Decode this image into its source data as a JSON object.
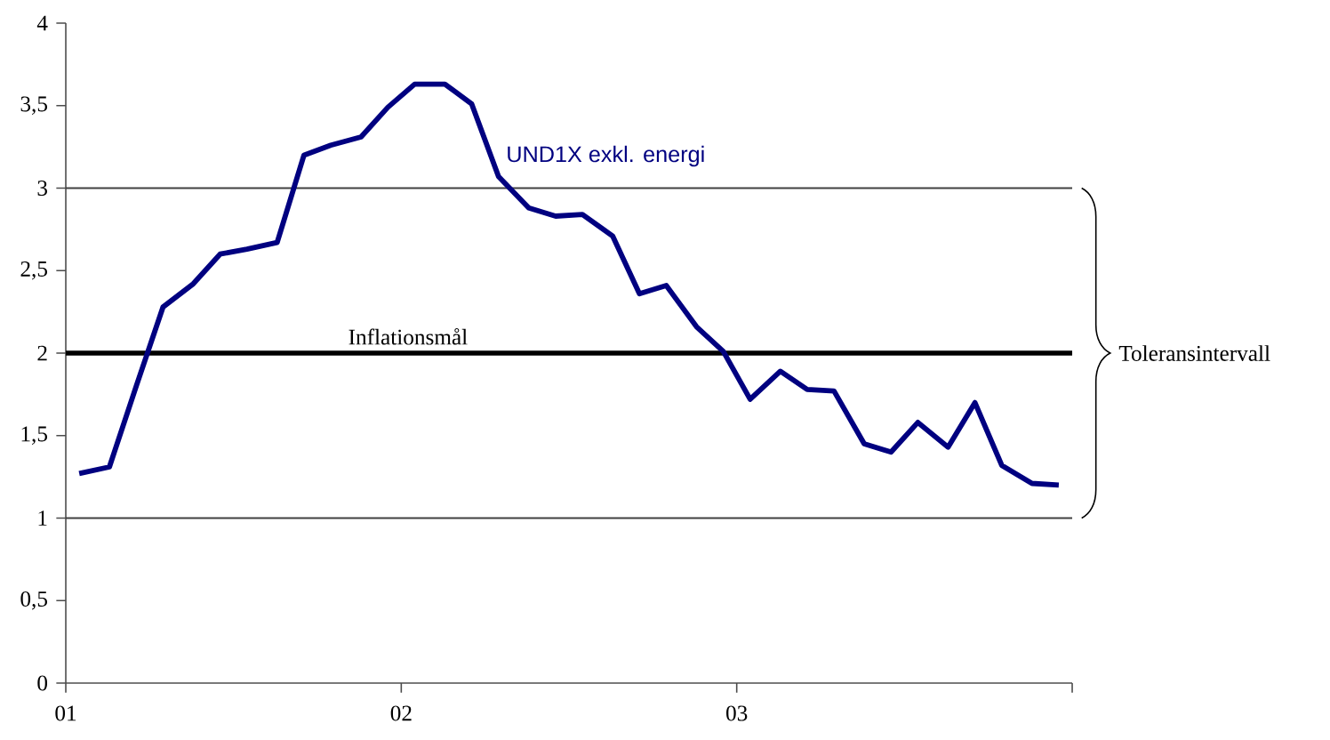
{
  "chart_data": {
    "type": "line",
    "marker": "none",
    "line_style": "solid",
    "x": [
      2001.04,
      2001.13,
      2001.21,
      2001.29,
      2001.38,
      2001.46,
      2001.54,
      2001.63,
      2001.71,
      2001.79,
      2001.88,
      2001.96,
      2002.04,
      2002.13,
      2002.21,
      2002.29,
      2002.38,
      2002.46,
      2002.54,
      2002.63,
      2002.71,
      2002.79,
      2002.88,
      2002.96,
      2003.04,
      2003.13,
      2003.21,
      2003.29,
      2003.38,
      2003.46,
      2003.54,
      2003.63,
      2003.71,
      2003.79,
      2003.88,
      2003.96
    ],
    "series": [
      {
        "name": "UND1X exkl. energi",
        "color": "#000080",
        "values": [
          1.27,
          1.31,
          1.8,
          2.28,
          2.42,
          2.6,
          2.63,
          2.67,
          3.2,
          3.26,
          3.31,
          3.49,
          3.63,
          3.63,
          3.51,
          3.07,
          2.88,
          2.83,
          2.84,
          2.71,
          2.36,
          2.41,
          2.16,
          2.01,
          1.72,
          1.89,
          1.78,
          1.77,
          1.45,
          1.4,
          1.58,
          1.43,
          1.7,
          1.32,
          1.21,
          1.2
        ]
      }
    ],
    "xlim": [
      2001,
      2004
    ],
    "xticks": [
      {
        "value": 2001,
        "label": "01"
      },
      {
        "value": 2002,
        "label": "02"
      },
      {
        "value": 2003,
        "label": "03"
      },
      {
        "value": 2004,
        "label": null
      }
    ],
    "ylim": [
      0,
      4
    ],
    "yticks": [
      0,
      {
        "value": 0.5,
        "label": "0,5"
      },
      1,
      {
        "value": 1.5,
        "label": "1,5"
      },
      2,
      {
        "value": 2.5,
        "label": "2,5"
      },
      3,
      {
        "value": 3.5,
        "label": "3,5"
      },
      4
    ],
    "ref_lines": [
      {
        "axis": "y",
        "value": 2,
        "label": "Inflationsmål",
        "color": "#000000"
      },
      {
        "axis": "y",
        "value": 1,
        "color": "#404040"
      },
      {
        "axis": "y",
        "value": 3,
        "color": "#404040"
      }
    ],
    "annotations": [
      "Toleransintervall"
    ]
  }
}
